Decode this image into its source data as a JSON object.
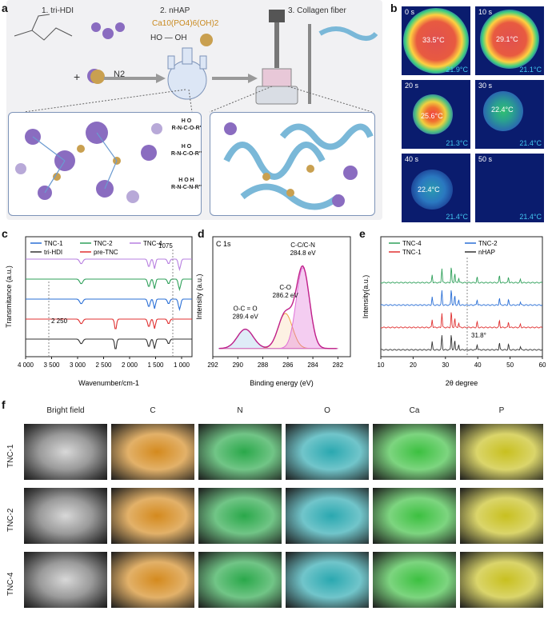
{
  "panel_a": {
    "label": "a",
    "step1": "1. tri-HDI",
    "step2": "2. nHAP",
    "step2_formula": "Ca10(PO4)6(OH)2",
    "step3": "3. Collagen fiber",
    "n2": "N2",
    "plus": "+",
    "equals": "=",
    "bond1": "R-N-C-O-R'",
    "bond1_top": "H O",
    "bond2": "R-N-C-O-R''",
    "bond2_top": "H O",
    "bond3": "R-N-C-N-R''",
    "bond3_top": "H O H",
    "ho_oh": "HO — OH"
  },
  "panel_b": {
    "label": "b",
    "frames": [
      {
        "time": "0 s",
        "center": "33.5°C",
        "bg": "21.9°C"
      },
      {
        "time": "10 s",
        "center": "29.1°C",
        "bg": "21.1°C"
      },
      {
        "time": "20 s",
        "center": "25.6°C",
        "bg": "21.3°C"
      },
      {
        "time": "30 s",
        "center": "22.4°C",
        "bg": "21.4°C"
      },
      {
        "time": "40 s",
        "center": "22.4°C",
        "bg": "21.4°C"
      },
      {
        "time": "50 s",
        "center": "",
        "bg": "21.4°C"
      }
    ]
  },
  "chart_data": [
    {
      "type": "line",
      "panel": "c",
      "xlabel": "Wavenumber/cm-1",
      "ylabel": "Transmitance (a.u.)",
      "x_ticks": [
        "4 000",
        "3 500",
        "3 000",
        "2 500",
        "2 000",
        "1 500",
        "1 000"
      ],
      "xlim": [
        4000,
        800
      ],
      "legend": [
        "TNC-1",
        "TNC-2",
        "TNC-4",
        "tri-HDI",
        "pre-TNC"
      ],
      "annotations": [
        "2 250",
        "1075"
      ],
      "series": [
        {
          "name": "TNC-4",
          "color": "#b77fe0",
          "offset": 0
        },
        {
          "name": "TNC-2",
          "color": "#2fa05a",
          "offset": 1
        },
        {
          "name": "TNC-1",
          "color": "#2a6fd6",
          "offset": 2
        },
        {
          "name": "pre-TNC",
          "color": "#e03030",
          "offset": 3
        },
        {
          "name": "tri-HDI",
          "color": "#333333",
          "offset": 4
        }
      ]
    },
    {
      "type": "area",
      "panel": "d",
      "title": "C 1s",
      "xlabel": "Binding energy (eV)",
      "ylabel": "Intensity (a.u.)",
      "x_ticks": [
        "292",
        "290",
        "288",
        "286",
        "284",
        "282"
      ],
      "xlim": [
        292,
        281
      ],
      "peaks": [
        {
          "label": "O-C = O",
          "energy": "289.4 eV",
          "center": 289.4,
          "height": 0.22,
          "color": "#2a82c9"
        },
        {
          "label": "C-O",
          "energy": "286.2 eV",
          "center": 286.2,
          "height": 0.4,
          "color": "#f0a040"
        },
        {
          "label": "C-C/C-N",
          "energy": "284.8 eV",
          "center": 284.8,
          "height": 0.92,
          "color": "#e070d8"
        }
      ]
    },
    {
      "type": "line",
      "panel": "e",
      "xlabel": "2θ degree",
      "ylabel": "Intensity(a.u.)",
      "x_ticks": [
        "10",
        "20",
        "30",
        "40",
        "50",
        "60"
      ],
      "xlim": [
        10,
        60
      ],
      "legend": [
        "TNC-4",
        "TNC-2",
        "TNC-1",
        "nHAP"
      ],
      "annotation": "31.8°",
      "series": [
        {
          "name": "TNC-4",
          "color": "#2fa05a",
          "offset": 0
        },
        {
          "name": "TNC-2",
          "color": "#2a6fd6",
          "offset": 1
        },
        {
          "name": "TNC-1",
          "color": "#e03030",
          "offset": 2
        },
        {
          "name": "nHAP",
          "color": "#333333",
          "offset": 3
        }
      ]
    }
  ],
  "panel_c": {
    "label": "c"
  },
  "panel_d": {
    "label": "d"
  },
  "panel_e": {
    "label": "e"
  },
  "panel_f": {
    "label": "f",
    "columns": [
      "Bright field",
      "C",
      "N",
      "O",
      "Ca",
      "P"
    ],
    "rows": [
      "TNC-1",
      "TNC-2",
      "TNC-4"
    ],
    "colors": [
      "#777777",
      "#d48a1e",
      "#2aa84a",
      "#2aa8b0",
      "#3cc040",
      "#c8c020"
    ]
  }
}
